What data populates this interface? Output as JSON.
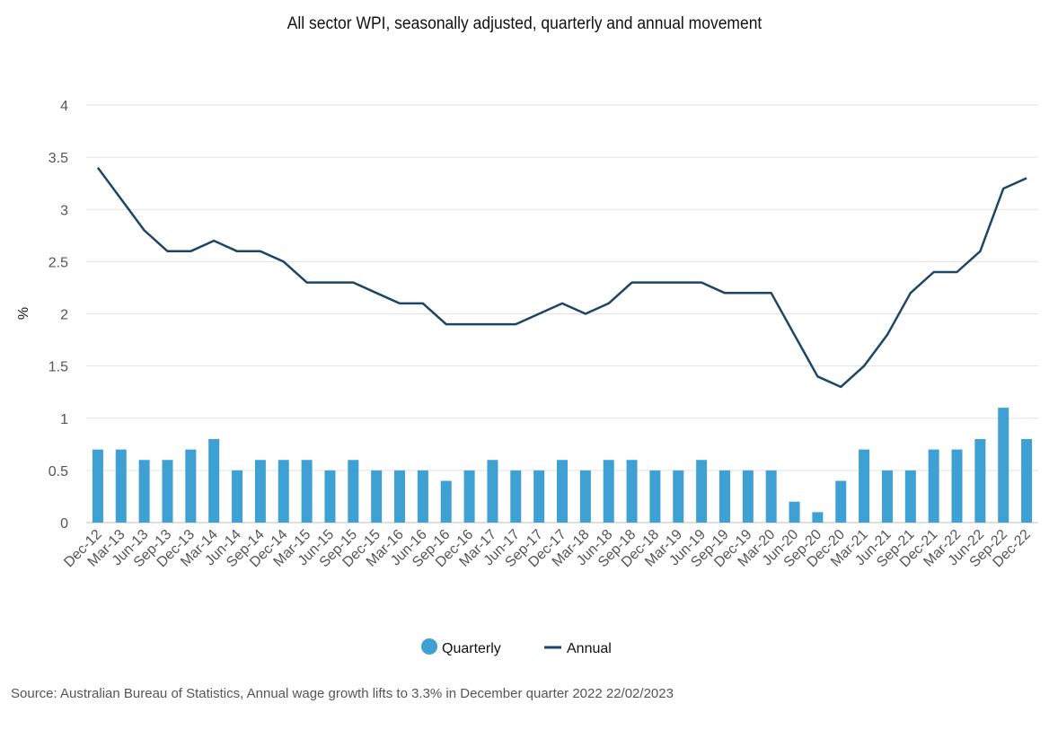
{
  "chart_data": {
    "type": "bar",
    "title": "All sector WPI, seasonally adjusted, quarterly and annual movement",
    "ylabel": "%",
    "xlabel": "",
    "ylim": [
      0,
      4
    ],
    "yticks": [
      "0",
      "0.5",
      "1",
      "1.5",
      "2",
      "2.5",
      "3",
      "3.5",
      "4"
    ],
    "grid": true,
    "legend_position": "bottom",
    "categories": [
      "Dec-12",
      "Mar-13",
      "Jun-13",
      "Sep-13",
      "Dec-13",
      "Mar-14",
      "Jun-14",
      "Sep-14",
      "Dec-14",
      "Mar-15",
      "Jun-15",
      "Sep-15",
      "Dec-15",
      "Mar-16",
      "Jun-16",
      "Sep-16",
      "Dec-16",
      "Mar-17",
      "Jun-17",
      "Sep-17",
      "Dec-17",
      "Mar-18",
      "Jun-18",
      "Sep-18",
      "Dec-18",
      "Mar-19",
      "Jun-19",
      "Sep-19",
      "Dec-19",
      "Mar-20",
      "Jun-20",
      "Sep-20",
      "Dec-20",
      "Mar-21",
      "Jun-21",
      "Sep-21",
      "Dec-21",
      "Mar-22",
      "Jun-22",
      "Sep-22",
      "Dec-22"
    ],
    "series": [
      {
        "name": "Quarterly",
        "type": "bar",
        "color": "#3fa0d3",
        "values": [
          0.7,
          0.7,
          0.6,
          0.6,
          0.7,
          0.8,
          0.5,
          0.6,
          0.6,
          0.6,
          0.5,
          0.6,
          0.5,
          0.5,
          0.5,
          0.4,
          0.5,
          0.6,
          0.5,
          0.5,
          0.6,
          0.5,
          0.6,
          0.6,
          0.5,
          0.5,
          0.6,
          0.5,
          0.5,
          0.5,
          0.2,
          0.1,
          0.4,
          0.7,
          0.5,
          0.5,
          0.7,
          0.7,
          0.8,
          1.1,
          0.8
        ]
      },
      {
        "name": "Annual",
        "type": "line",
        "color": "#1c4566",
        "values": [
          3.4,
          3.1,
          2.8,
          2.6,
          2.6,
          2.7,
          2.6,
          2.6,
          2.5,
          2.3,
          2.3,
          2.3,
          2.2,
          2.1,
          2.1,
          1.9,
          1.9,
          1.9,
          1.9,
          2.0,
          2.1,
          2.0,
          2.1,
          2.3,
          2.3,
          2.3,
          2.3,
          2.2,
          2.2,
          2.2,
          1.8,
          1.4,
          1.3,
          1.5,
          1.8,
          2.2,
          2.4,
          2.4,
          2.6,
          3.2,
          3.3
        ]
      }
    ],
    "source": "Source: Australian Bureau of Statistics, Annual wage growth lifts to 3.3% in December quarter 2022 22/02/2023"
  }
}
